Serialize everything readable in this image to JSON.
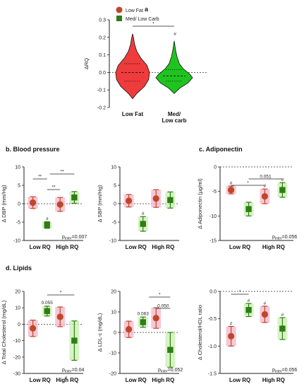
{
  "colors": {
    "low_fat": "#c0462a",
    "low_carb": "#2f7d16",
    "shade_red": "#f3b6c8",
    "shade_green": "#c9efb0",
    "violin_red": "#ef3b3b",
    "violin_green": "#1fc41f"
  },
  "sections": {
    "a": "a",
    "b": "b. Blood pressure",
    "c": "c. Adiponectin",
    "d": "d. Lipids"
  },
  "chart_data": [
    {
      "id": "a",
      "type": "violin",
      "legend": [
        "Low Fat",
        "Med/ Low Carb"
      ],
      "ylabel": "ΔRQ",
      "ylim": [
        -0.2,
        0.3
      ],
      "yticks": [
        "-0.2",
        "-0.1",
        "0.0",
        "0.1",
        "0.2",
        "0.3"
      ],
      "categories": [
        "Low Fat",
        "Med/\nLow carb"
      ],
      "series": [
        {
          "median": 0.0,
          "q1": -0.05,
          "q3": 0.05,
          "min": -0.15,
          "max": 0.22
        },
        {
          "median": -0.02,
          "q1": -0.05,
          "q3": 0.015,
          "min": -0.12,
          "max": 0.18
        }
      ],
      "annotations": [
        "*",
        "#"
      ]
    },
    {
      "id": "b1",
      "type": "scatter-errorbar",
      "ylabel": "Δ DBP (mm/Hg)",
      "ylim": [
        -10,
        10
      ],
      "yticks": [
        "-10",
        "-5",
        "0",
        "5",
        "10"
      ],
      "categories": [
        "Low RQ",
        "High RQ"
      ],
      "series": [
        {
          "values": [
            0.3,
            -0.2
          ],
          "err": [
            1.6,
            1.9
          ]
        },
        {
          "values": [
            -5.8,
            1.7
          ],
          "err": [
            0.9,
            1.6
          ]
        }
      ],
      "annotations": [
        "#",
        "**",
        "**",
        "**"
      ],
      "p_inter_label": "p",
      "p_inter_sub": "inter",
      "p_inter": "=0.007"
    },
    {
      "id": "b2",
      "type": "scatter-errorbar",
      "ylabel": "Δ SBP (mm/Hg)",
      "ylim": [
        -10,
        10
      ],
      "yticks": [
        "-10",
        "-5",
        "0",
        "5",
        "10"
      ],
      "categories": [
        "Low RQ",
        "High RQ"
      ],
      "series": [
        {
          "values": [
            0.8,
            1.4
          ],
          "err": [
            1.7,
            2.4
          ]
        },
        {
          "values": [
            -5.5,
            1.0
          ],
          "err": [
            2.0,
            2.2
          ]
        }
      ],
      "annotations": [
        "#"
      ]
    },
    {
      "id": "c",
      "type": "scatter-errorbar",
      "ylabel": "Δ Adiponectin (µg/ml)",
      "ylim": [
        -15,
        0
      ],
      "yticks": [
        "-15",
        "-10",
        "-5",
        "0"
      ],
      "categories": [
        "Low RQ",
        "High RQ"
      ],
      "series": [
        {
          "values": [
            -4.7,
            -6.0
          ],
          "err": [
            0.8,
            1.5
          ]
        },
        {
          "values": [
            -8.6,
            -4.7
          ],
          "err": [
            1.4,
            1.5
          ]
        }
      ],
      "annotations": [
        "#",
        "#",
        "#",
        "*",
        "0.051"
      ],
      "p_inter_label": "p",
      "p_inter_sub": "inter",
      "p_inter": "=0.056"
    },
    {
      "id": "d1",
      "type": "scatter-errorbar",
      "ylabel": "Δ Total Cholesterol (mg/dL)",
      "ylim": [
        -30,
        20
      ],
      "yticks": [
        "-30",
        "-20",
        "-10",
        "0",
        "10",
        "20"
      ],
      "categories": [
        "Low RQ",
        "High RQ"
      ],
      "series": [
        {
          "values": [
            -2.5,
            4.5
          ],
          "err": [
            5.0,
            6.0
          ]
        },
        {
          "values": [
            8.0,
            -10.0
          ],
          "err": [
            3.0,
            12.0
          ]
        }
      ],
      "annotations": [
        "0.055",
        "*",
        "#"
      ],
      "p_inter_label": "p",
      "p_inter_sub": "inter",
      "p_inter": "=0.04"
    },
    {
      "id": "d2",
      "type": "scatter-errorbar",
      "ylabel": "Δ LDL-c (mg/dL)",
      "ylim": [
        -20,
        20
      ],
      "yticks": [
        "-20",
        "-10",
        "0",
        "10",
        "20"
      ],
      "categories": [
        "Low RQ",
        "High RQ"
      ],
      "series": [
        {
          "values": [
            1.5,
            7.0
          ],
          "err": [
            4.0,
            5.0
          ]
        },
        {
          "values": [
            5.0,
            -8.5
          ],
          "err": [
            2.5,
            8.5
          ]
        }
      ],
      "annotations": [
        "0.063",
        "*",
        "0.050"
      ],
      "p_inter_label": "p",
      "p_inter_sub": "inter",
      "p_inter": "=0.052"
    },
    {
      "id": "d3",
      "type": "scatter-errorbar",
      "ylabel": "Δ Cholesterol/HDL ratio",
      "ylim": [
        -1.5,
        0
      ],
      "yticks": [
        "-1.5",
        "-1.0",
        "-0.5",
        "0.0"
      ],
      "categories": [
        "Low RQ",
        "High RQ"
      ],
      "series": [
        {
          "values": [
            -0.82,
            -0.42
          ],
          "err": [
            0.18,
            0.15
          ]
        },
        {
          "values": [
            -0.34,
            -0.68
          ],
          "err": [
            0.12,
            0.2
          ]
        }
      ],
      "annotations": [
        "#",
        "#",
        "#",
        "#",
        "*"
      ],
      "p_inter_label": "p",
      "p_inter_sub": "inter",
      "p_inter": "=0.056"
    }
  ]
}
